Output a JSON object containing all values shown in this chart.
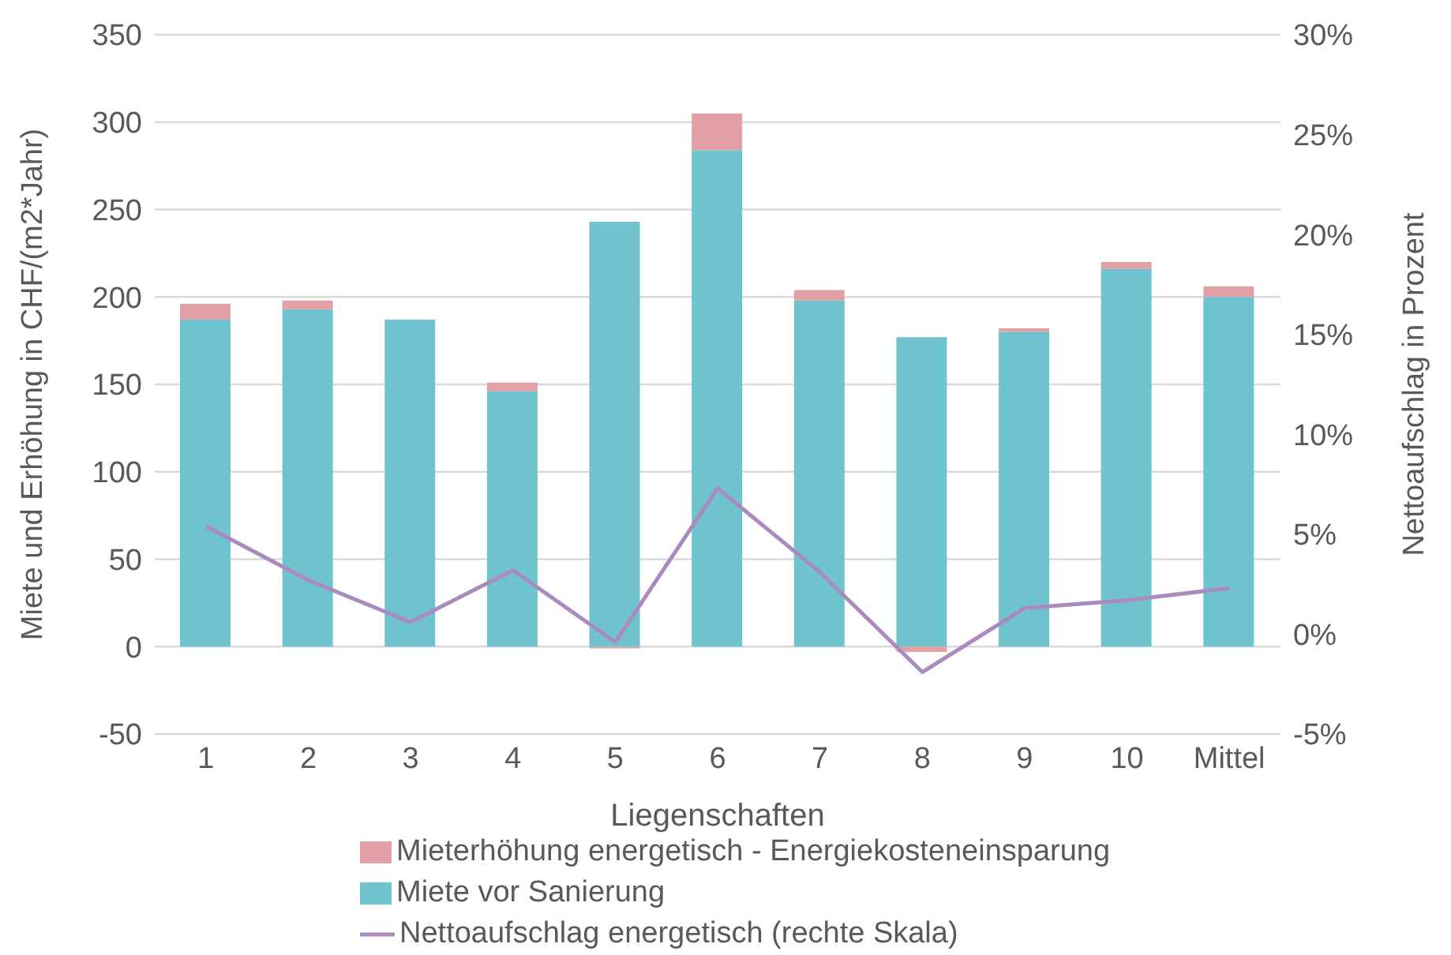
{
  "chart_data": {
    "type": "bar",
    "stacked": true,
    "xlabel": "Liegenschaften",
    "ylabel": "Miete und Erhöhung in CHF/(m2*Jahr)",
    "y2label": "Nettoaufschlag in Prozent",
    "categories": [
      "1",
      "2",
      "3",
      "4",
      "5",
      "6",
      "7",
      "8",
      "9",
      "10",
      "Mittel"
    ],
    "series": [
      {
        "name": "Miete vor Sanierung",
        "color": "#6fc3cf",
        "values": [
          187,
          193,
          187,
          146,
          243,
          284,
          198,
          177,
          180,
          216,
          200
        ]
      },
      {
        "name": "Mieterhöhung energetisch - Energiekosteneinsparung",
        "color": "#e0a0a5",
        "values": [
          9,
          5,
          0,
          5,
          -1,
          21,
          6,
          -3,
          2,
          4,
          6
        ]
      },
      {
        "name": "Nettoaufschlag energetisch (rechte Skala)",
        "type": "line",
        "axis": "y2",
        "color": "#a98bc0",
        "values": [
          5.4,
          2.7,
          0.6,
          3.2,
          -0.4,
          7.3,
          3.1,
          -1.9,
          1.3,
          1.7,
          2.3
        ]
      }
    ],
    "ylim": [
      -50,
      350
    ],
    "yticks": [
      -50,
      0,
      50,
      100,
      150,
      200,
      250,
      300,
      350
    ],
    "y2lim": [
      -5,
      30
    ],
    "y2ticks": [
      {
        "value": -5,
        "label": "-5%"
      },
      {
        "value": 0,
        "label": "0%"
      },
      {
        "value": 5,
        "label": "5%"
      },
      {
        "value": 10,
        "label": "10%"
      },
      {
        "value": 15,
        "label": "15%"
      },
      {
        "value": 20,
        "label": "20%"
      },
      {
        "value": 25,
        "label": "25%"
      },
      {
        "value": 30,
        "label": "30%"
      }
    ],
    "grid": "y",
    "legend": "bottom",
    "marker": "none",
    "line_style": "solid"
  }
}
